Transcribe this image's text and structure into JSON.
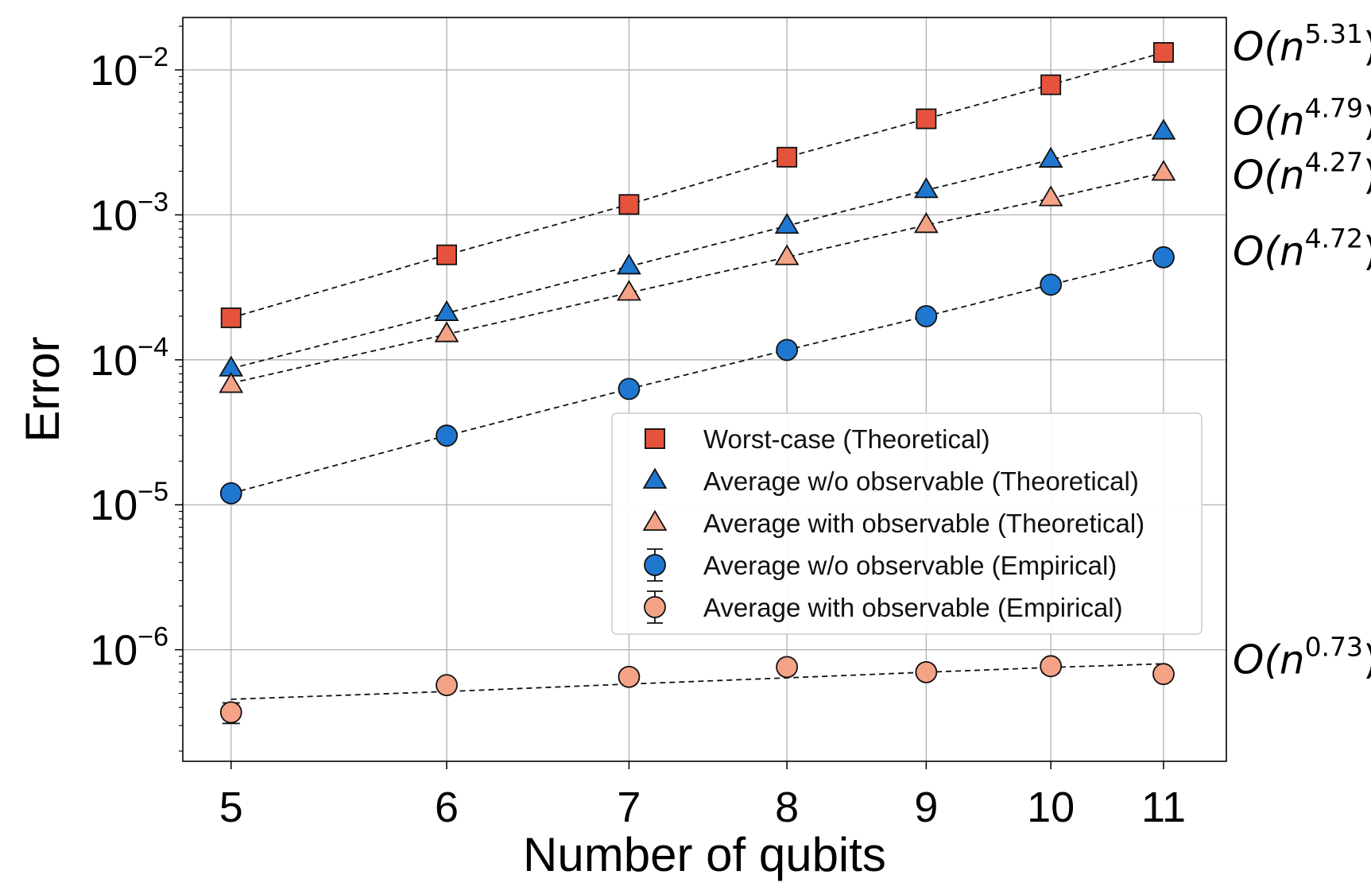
{
  "chart_data": {
    "type": "scatter",
    "xlabel": "Number of qubits",
    "ylabel": "Error",
    "xscale": "log",
    "yscale": "log",
    "x": [
      5,
      6,
      7,
      8,
      9,
      10,
      11
    ],
    "xlim": [
      4.8,
      11.6
    ],
    "ylim": [
      1.7e-07,
      0.023
    ],
    "xticks": [
      5,
      6,
      7,
      8,
      9,
      10,
      11
    ],
    "yticks": [
      1e-06,
      1e-05,
      0.0001,
      0.001,
      0.01
    ],
    "ytick_labels": [
      {
        "base": "10",
        "exp": "−6"
      },
      {
        "base": "10",
        "exp": "−5"
      },
      {
        "base": "10",
        "exp": "−4"
      },
      {
        "base": "10",
        "exp": "−3"
      },
      {
        "base": "10",
        "exp": "−2"
      }
    ],
    "grid": true,
    "legend_position": "center-right",
    "series": [
      {
        "name": "Worst-case (Theoretical)",
        "marker": "square",
        "color": "#e5533d",
        "values": [
          0.000195,
          0.00053,
          0.00118,
          0.0025,
          0.0046,
          0.0079,
          0.0132
        ],
        "fit": [
          0.000195,
          0.00053,
          0.00118,
          0.0025,
          0.0046,
          0.0079,
          0.0132
        ],
        "fit_label": {
          "base": "O(n",
          "exp": "5.31",
          "close": ")"
        }
      },
      {
        "name": "Average w/o observable (Theoretical)",
        "marker": "triangle",
        "color": "#1f77d0",
        "values": [
          8.7e-05,
          0.00021,
          0.00044,
          0.00084,
          0.00148,
          0.0024,
          0.00375
        ],
        "fit": [
          8.7e-05,
          0.00021,
          0.00044,
          0.00084,
          0.00148,
          0.0024,
          0.00375
        ],
        "fit_label": {
          "base": "O(n",
          "exp": "4.79",
          "close": ")"
        }
      },
      {
        "name": "Average with observable (Theoretical)",
        "marker": "triangle",
        "color": "#f4a387",
        "values": [
          6.7e-05,
          0.00015,
          0.00029,
          0.00051,
          0.00085,
          0.0013,
          0.00195
        ],
        "fit": [
          6.9e-05,
          0.00015,
          0.00029,
          0.00051,
          0.00085,
          0.0013,
          0.00195
        ],
        "fit_label": {
          "base": "O(n",
          "exp": "4.27",
          "close": ")"
        }
      },
      {
        "name": "Average w/o observable (Empirical)",
        "marker": "circle",
        "color": "#1f77d0",
        "errorbars": true,
        "values": [
          1.2e-05,
          3e-05,
          6.3e-05,
          0.000117,
          0.0002,
          0.00033,
          0.00051
        ],
        "fit": [
          1.2e-05,
          3e-05,
          6.3e-05,
          0.000117,
          0.0002,
          0.00033,
          0.00051
        ],
        "fit_label": {
          "base": "O(n",
          "exp": "4.72",
          "close": ")"
        }
      },
      {
        "name": "Average with observable (Empirical)",
        "marker": "circle",
        "color": "#f4a387",
        "errorbars": true,
        "values": [
          3.7e-07,
          5.7e-07,
          6.5e-07,
          7.6e-07,
          7e-07,
          7.7e-07,
          6.8e-07
        ],
        "error": [
          [
            3.1e-07,
            4.3e-07
          ],
          [
            5.4e-07,
            6e-07
          ],
          [
            5.9e-07,
            7.2e-07
          ],
          [
            7.1e-07,
            8.3e-07
          ],
          [
            6.7e-07,
            7.4e-07
          ],
          [
            6.9e-07,
            8.5e-07
          ],
          [
            6.2e-07,
            7.5e-07
          ]
        ],
        "fit": [
          4.55e-07,
          5.15e-07,
          5.8e-07,
          6.4e-07,
          7e-07,
          7.55e-07,
          8e-07
        ],
        "fit_label": {
          "base": "O(n",
          "exp": "0.73",
          "close": ")"
        }
      }
    ]
  }
}
